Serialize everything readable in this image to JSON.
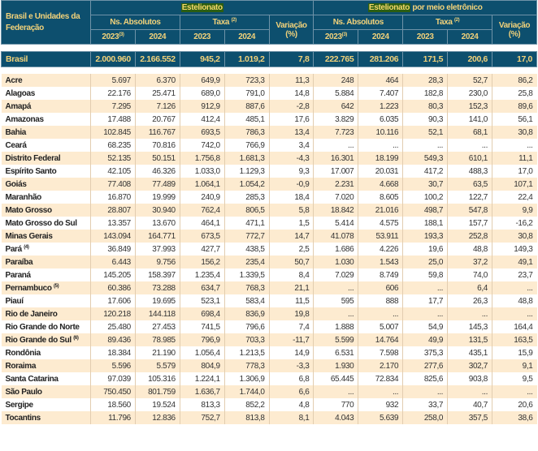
{
  "header": {
    "first_col": "Brasil e Unidades da Federação",
    "group1": {
      "title": "Estelionato",
      "suffix": ""
    },
    "group2": {
      "title": "Estelionato",
      "suffix": " por meio eletrônico"
    },
    "abs": "Ns. Absolutos",
    "taxa": "Taxa",
    "taxa_note": "(2)",
    "variacao": "Variação (%)",
    "y2023": "2023",
    "y2023_note": "(3)",
    "y2024": "2024"
  },
  "brasil": {
    "name": "Brasil",
    "values": [
      "2.000.960",
      "2.166.552",
      "945,2",
      "1.019,2",
      "7,8",
      "222.765",
      "281.206",
      "171,5",
      "200,6",
      "17,0"
    ]
  },
  "rows": [
    {
      "name": "Acre",
      "note": "",
      "values": [
        "5.697",
        "6.370",
        "649,9",
        "723,3",
        "11,3",
        "248",
        "464",
        "28,3",
        "52,7",
        "86,2"
      ]
    },
    {
      "name": "Alagoas",
      "note": "",
      "values": [
        "22.176",
        "25.471",
        "689,0",
        "791,0",
        "14,8",
        "5.884",
        "7.407",
        "182,8",
        "230,0",
        "25,8"
      ]
    },
    {
      "name": "Amapá",
      "note": "",
      "values": [
        "7.295",
        "7.126",
        "912,9",
        "887,6",
        "-2,8",
        "642",
        "1.223",
        "80,3",
        "152,3",
        "89,6"
      ]
    },
    {
      "name": "Amazonas",
      "note": "",
      "values": [
        "17.488",
        "20.767",
        "412,4",
        "485,1",
        "17,6",
        "3.829",
        "6.035",
        "90,3",
        "141,0",
        "56,1"
      ]
    },
    {
      "name": "Bahia",
      "note": "",
      "values": [
        "102.845",
        "116.767",
        "693,5",
        "786,3",
        "13,4",
        "7.723",
        "10.116",
        "52,1",
        "68,1",
        "30,8"
      ]
    },
    {
      "name": "Ceará",
      "note": "",
      "values": [
        "68.235",
        "70.816",
        "742,0",
        "766,9",
        "3,4",
        "...",
        "...",
        "...",
        "...",
        "..."
      ]
    },
    {
      "name": "Distrito Federal",
      "note": "",
      "values": [
        "52.135",
        "50.151",
        "1.756,8",
        "1.681,3",
        "-4,3",
        "16.301",
        "18.199",
        "549,3",
        "610,1",
        "11,1"
      ]
    },
    {
      "name": "Espírito Santo",
      "note": "",
      "values": [
        "42.105",
        "46.326",
        "1.033,0",
        "1.129,3",
        "9,3",
        "17.007",
        "20.031",
        "417,2",
        "488,3",
        "17,0"
      ]
    },
    {
      "name": "Goiás",
      "note": "",
      "values": [
        "77.408",
        "77.489",
        "1.064,1",
        "1.054,2",
        "-0,9",
        "2.231",
        "4.668",
        "30,7",
        "63,5",
        "107,1"
      ]
    },
    {
      "name": "Maranhão",
      "note": "",
      "values": [
        "16.870",
        "19.999",
        "240,9",
        "285,3",
        "18,4",
        "7.020",
        "8.605",
        "100,2",
        "122,7",
        "22,4"
      ]
    },
    {
      "name": "Mato Grosso",
      "note": "",
      "values": [
        "28.807",
        "30.940",
        "762,4",
        "806,5",
        "5,8",
        "18.842",
        "21.016",
        "498,7",
        "547,8",
        "9,9"
      ]
    },
    {
      "name": "Mato Grosso do Sul",
      "note": "",
      "values": [
        "13.357",
        "13.670",
        "464,1",
        "471,1",
        "1,5",
        "5.414",
        "4.575",
        "188,1",
        "157,7",
        "-16,2"
      ]
    },
    {
      "name": "Minas Gerais",
      "note": "",
      "values": [
        "143.094",
        "164.771",
        "673,5",
        "772,7",
        "14,7",
        "41.078",
        "53.911",
        "193,3",
        "252,8",
        "30,8"
      ]
    },
    {
      "name": "Pará",
      "note": "(4)",
      "values": [
        "36.849",
        "37.993",
        "427,7",
        "438,5",
        "2,5",
        "1.686",
        "4.226",
        "19,6",
        "48,8",
        "149,3"
      ]
    },
    {
      "name": "Paraíba",
      "note": "",
      "values": [
        "6.443",
        "9.756",
        "156,2",
        "235,4",
        "50,7",
        "1.030",
        "1.543",
        "25,0",
        "37,2",
        "49,1"
      ]
    },
    {
      "name": "Paraná",
      "note": "",
      "values": [
        "145.205",
        "158.397",
        "1.235,4",
        "1.339,5",
        "8,4",
        "7.029",
        "8.749",
        "59,8",
        "74,0",
        "23,7"
      ]
    },
    {
      "name": "Pernambuco",
      "note": "(5)",
      "values": [
        "60.386",
        "73.288",
        "634,7",
        "768,3",
        "21,1",
        "...",
        "606",
        "...",
        "6,4",
        "..."
      ]
    },
    {
      "name": "Piauí",
      "note": "",
      "values": [
        "17.606",
        "19.695",
        "523,1",
        "583,4",
        "11,5",
        "595",
        "888",
        "17,7",
        "26,3",
        "48,8"
      ]
    },
    {
      "name": "Rio de Janeiro",
      "note": "",
      "values": [
        "120.218",
        "144.118",
        "698,4",
        "836,9",
        "19,8",
        "...",
        "...",
        "...",
        "...",
        "..."
      ]
    },
    {
      "name": "Rio Grande do Norte",
      "note": "",
      "values": [
        "25.480",
        "27.453",
        "741,5",
        "796,6",
        "7,4",
        "1.888",
        "5.007",
        "54,9",
        "145,3",
        "164,4"
      ]
    },
    {
      "name": "Rio Grande do Sul",
      "note": "(6)",
      "values": [
        "89.436",
        "78.985",
        "796,9",
        "703,3",
        "-11,7",
        "5.599",
        "14.764",
        "49,9",
        "131,5",
        "163,5"
      ]
    },
    {
      "name": "Rondônia",
      "note": "",
      "values": [
        "18.384",
        "21.190",
        "1.056,4",
        "1.213,5",
        "14,9",
        "6.531",
        "7.598",
        "375,3",
        "435,1",
        "15,9"
      ]
    },
    {
      "name": "Roraima",
      "note": "",
      "values": [
        "5.596",
        "5.579",
        "804,9",
        "778,3",
        "-3,3",
        "1.930",
        "2.170",
        "277,6",
        "302,7",
        "9,1"
      ]
    },
    {
      "name": "Santa Catarina",
      "note": "",
      "values": [
        "97.039",
        "105.316",
        "1.224,1",
        "1.306,9",
        "6,8",
        "65.445",
        "72.834",
        "825,6",
        "903,8",
        "9,5"
      ]
    },
    {
      "name": "São Paulo",
      "note": "",
      "values": [
        "750.450",
        "801.759",
        "1.636,7",
        "1.744,0",
        "6,6",
        "...",
        "...",
        "...",
        "...",
        "..."
      ]
    },
    {
      "name": "Sergipe",
      "note": "",
      "values": [
        "18.560",
        "19.524",
        "813,3",
        "852,2",
        "4,8",
        "770",
        "932",
        "33,7",
        "40,7",
        "20,6"
      ]
    },
    {
      "name": "Tocantins",
      "note": "",
      "values": [
        "11.796",
        "12.836",
        "752,7",
        "813,8",
        "8,1",
        "4.043",
        "5.639",
        "258,0",
        "357,5",
        "38,6"
      ]
    }
  ],
  "colors": {
    "header_bg": "#0d4f6e",
    "header_text": "#f2d27a",
    "highlight_bg": "#2c5e12",
    "stripe": "#fdebd0"
  }
}
